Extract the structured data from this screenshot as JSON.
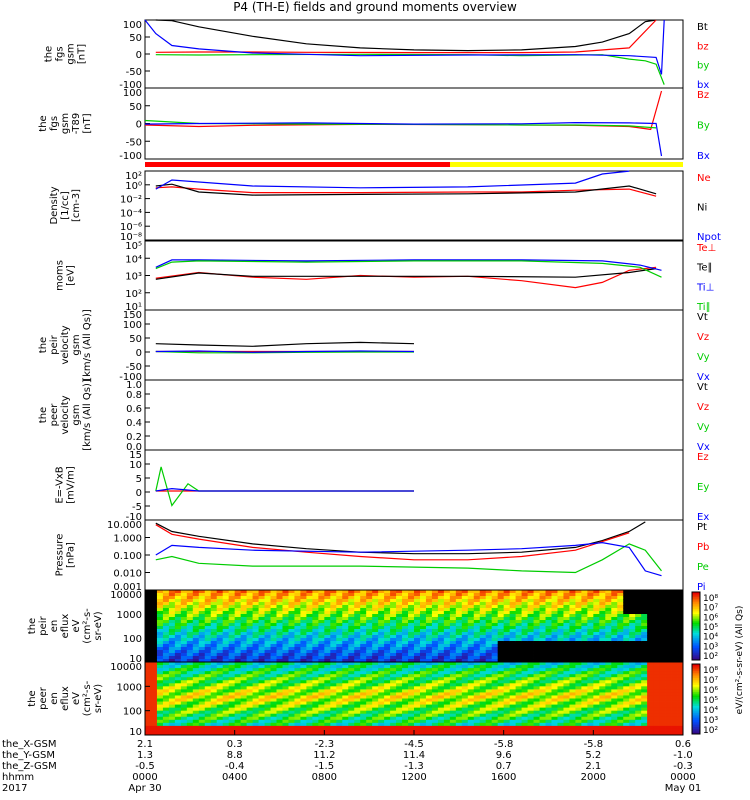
{
  "title": "P4 (TH-E) fields and ground moments overview",
  "colors": {
    "black": "#000000",
    "red": "#ff0000",
    "green": "#00cc00",
    "blue": "#0000ff",
    "bar_red": "#ff0000",
    "bar_yellow": "#ffff00"
  },
  "chart_data": [
    {
      "type": "line",
      "panel_id": "fgs_gsm",
      "ylabel_lines": [
        "the",
        "fgs",
        "gsm",
        "[nT]"
      ],
      "yticks": [
        "100",
        "50",
        "0",
        "-50",
        "-100"
      ],
      "ylim": [
        -100,
        100
      ],
      "legend": [
        {
          "label": "Bt",
          "color": "#000000"
        },
        {
          "label": "bz",
          "color": "#ff0000"
        },
        {
          "label": "by",
          "color": "#00cc00"
        },
        {
          "label": "bx",
          "color": "#0000ff"
        }
      ],
      "series": [
        {
          "name": "Bt",
          "color": "#000000",
          "x": [
            0.02,
            0.05,
            0.1,
            0.2,
            0.3,
            0.4,
            0.5,
            0.6,
            0.7,
            0.8,
            0.85,
            0.9,
            0.93,
            0.95
          ],
          "y": [
            105,
            98,
            80,
            52,
            30,
            18,
            12,
            10,
            12,
            22,
            35,
            60,
            95,
            105
          ]
        },
        {
          "name": "bz",
          "color": "#ff0000",
          "x": [
            0.02,
            0.1,
            0.2,
            0.3,
            0.5,
            0.7,
            0.8,
            0.9,
            0.95
          ],
          "y": [
            5,
            6,
            6,
            5,
            4,
            4,
            6,
            18,
            100
          ]
        },
        {
          "name": "by",
          "color": "#00cc00",
          "x": [
            0.02,
            0.1,
            0.2,
            0.4,
            0.6,
            0.7,
            0.8,
            0.85,
            0.88,
            0.9,
            0.93,
            0.95,
            0.965
          ],
          "y": [
            -2,
            -3,
            -2,
            -1,
            -2,
            -5,
            -3,
            -2,
            -10,
            -15,
            -20,
            -30,
            -90
          ]
        },
        {
          "name": "bx",
          "color": "#0000ff",
          "x": [
            0.0,
            0.02,
            0.05,
            0.1,
            0.2,
            0.4,
            0.6,
            0.8,
            0.9,
            0.95,
            0.96,
            0.965
          ],
          "y": [
            100,
            60,
            25,
            15,
            3,
            -5,
            -3,
            -2,
            -5,
            -10,
            -60,
            100
          ]
        }
      ]
    },
    {
      "type": "line",
      "panel_id": "fgs_gsm_t89",
      "ylabel_lines": [
        "the",
        "fgs",
        "gsm",
        "-T89",
        "[nT]"
      ],
      "yticks": [
        "100",
        "50",
        "0",
        "-50",
        "-100"
      ],
      "ylim": [
        -120,
        120
      ],
      "legend": [
        {
          "label": "Bz",
          "color": "#ff0000"
        },
        {
          "label": "By",
          "color": "#00cc00"
        },
        {
          "label": "Bx",
          "color": "#0000ff"
        }
      ],
      "series": [
        {
          "name": "Bz",
          "color": "#ff0000",
          "x": [
            0.0,
            0.1,
            0.2,
            0.4,
            0.6,
            0.8,
            0.9,
            0.94,
            0.96
          ],
          "y": [
            -5,
            -10,
            -6,
            -3,
            -4,
            -6,
            -10,
            -20,
            110
          ]
        },
        {
          "name": "By",
          "color": "#00cc00",
          "x": [
            0.0,
            0.1,
            0.3,
            0.5,
            0.7,
            0.8,
            0.9,
            0.95
          ],
          "y": [
            10,
            0,
            -2,
            -3,
            -5,
            -5,
            -8,
            -15
          ]
        },
        {
          "name": "Bx",
          "color": "#0000ff",
          "x": [
            0.0,
            0.1,
            0.3,
            0.5,
            0.7,
            0.8,
            0.9,
            0.95,
            0.96
          ],
          "y": [
            -2,
            0,
            2,
            -2,
            -1,
            3,
            2,
            0,
            -110
          ]
        }
      ]
    },
    {
      "type": "line",
      "panel_id": "density",
      "ylabel_lines": [
        "Density",
        "[1/cc]",
        "[cm-3]"
      ],
      "yticks": [
        "10²",
        "10⁰",
        "10⁻²",
        "10⁻⁴",
        "10⁻⁶",
        "10⁻⁸"
      ],
      "ylim_log10": [
        -9,
        2.5
      ],
      "legend": [
        {
          "label": "Ne",
          "color": "#ff0000"
        },
        {
          "label": "Ni",
          "color": "#000000"
        },
        {
          "label": "Npot",
          "color": "#0000ff"
        }
      ],
      "series": [
        {
          "name": "Ne",
          "color": "#ff0000",
          "x": [
            0.02,
            0.05,
            0.1,
            0.2,
            0.4,
            0.6,
            0.7,
            0.8,
            0.9,
            0.95
          ],
          "y": [
            0.5,
            0.7,
            0.3,
            0.08,
            0.08,
            0.1,
            0.1,
            0.2,
            0.3,
            0.02
          ]
        },
        {
          "name": "Ni",
          "color": "#000000",
          "x": [
            0.02,
            0.05,
            0.1,
            0.2,
            0.4,
            0.6,
            0.8,
            0.9,
            0.95
          ],
          "y": [
            1,
            2,
            0.1,
            0.03,
            0.04,
            0.05,
            0.1,
            1,
            0.05
          ]
        },
        {
          "name": "Npot",
          "color": "#0000ff",
          "x": [
            0.02,
            0.05,
            0.2,
            0.4,
            0.6,
            0.8,
            0.85,
            0.9
          ],
          "y": [
            0.3,
            10,
            1,
            0.5,
            0.7,
            3,
            100,
            300
          ]
        }
      ]
    },
    {
      "type": "line",
      "panel_id": "moments_temp",
      "ylabel_lines": [
        "moms",
        "[eV]"
      ],
      "yticks": [
        "10⁵",
        "10⁴",
        "10³",
        "10²",
        "10¹"
      ],
      "ylim_log10": [
        1,
        5
      ],
      "legend": [
        {
          "label": "Te⊥",
          "color": "#ff0000"
        },
        {
          "label": "Te∥",
          "color": "#000000"
        },
        {
          "label": "Ti⊥",
          "color": "#0000ff"
        },
        {
          "label": "Ti∥",
          "color": "#00cc00"
        }
      ],
      "series": [
        {
          "name": "Te⊥",
          "color": "#ff0000",
          "x": [
            0.02,
            0.1,
            0.2,
            0.3,
            0.4,
            0.5,
            0.6,
            0.7,
            0.8,
            0.85,
            0.9,
            0.95
          ],
          "y": [
            700,
            1500,
            800,
            600,
            1000,
            800,
            900,
            500,
            200,
            400,
            2000,
            3000
          ]
        },
        {
          "name": "Te∥",
          "color": "#000000",
          "x": [
            0.02,
            0.1,
            0.2,
            0.4,
            0.6,
            0.8,
            0.9,
            0.95
          ],
          "y": [
            600,
            1400,
            900,
            900,
            900,
            800,
            1500,
            2500
          ]
        },
        {
          "name": "Ti⊥",
          "color": "#0000ff",
          "x": [
            0.02,
            0.05,
            0.1,
            0.3,
            0.5,
            0.7,
            0.85,
            0.92,
            0.96
          ],
          "y": [
            3000,
            8000,
            8000,
            7000,
            8000,
            8000,
            7000,
            4000,
            2000
          ]
        },
        {
          "name": "Ti∥",
          "color": "#00cc00",
          "x": [
            0.02,
            0.05,
            0.1,
            0.3,
            0.5,
            0.7,
            0.85,
            0.92,
            0.96
          ],
          "y": [
            2500,
            6000,
            7000,
            6000,
            7000,
            7000,
            5000,
            3000,
            800
          ]
        }
      ]
    },
    {
      "type": "line",
      "panel_id": "peir_velocity",
      "ylabel_lines": [
        "the",
        "peir",
        "velocity",
        "gsm",
        "[km/s (All Qs)]"
      ],
      "yticks": [
        "150",
        "100",
        "50",
        "0",
        "-50",
        "-100"
      ],
      "ylim": [
        -110,
        160
      ],
      "legend": [
        {
          "label": "Vt",
          "color": "#000000"
        },
        {
          "label": "Vz",
          "color": "#ff0000"
        },
        {
          "label": "Vy",
          "color": "#00cc00"
        },
        {
          "label": "Vx",
          "color": "#0000ff"
        }
      ],
      "series": [
        {
          "name": "Vt",
          "color": "#000000",
          "x": [
            0.02,
            0.1,
            0.2,
            0.3,
            0.4,
            0.5
          ],
          "y": [
            30,
            25,
            20,
            30,
            35,
            30
          ]
        },
        {
          "name": "Vz",
          "color": "#ff0000",
          "x": [
            0.02,
            0.1,
            0.2,
            0.3,
            0.4,
            0.5
          ],
          "y": [
            0,
            0,
            0,
            0,
            0,
            0
          ]
        },
        {
          "name": "Vy",
          "color": "#00cc00",
          "x": [
            0.02,
            0.1,
            0.2,
            0.3,
            0.4,
            0.5
          ],
          "y": [
            0,
            -5,
            -5,
            -3,
            -2,
            -2
          ]
        },
        {
          "name": "Vx",
          "color": "#0000ff",
          "x": [
            0.02,
            0.1,
            0.2,
            0.3,
            0.4,
            0.5
          ],
          "y": [
            0,
            2,
            -3,
            0,
            2,
            0
          ]
        }
      ]
    },
    {
      "type": "line",
      "panel_id": "peer_velocity",
      "ylabel_lines": [
        "the",
        "peer",
        "velocity",
        "gsm",
        "[km/s (All Qs)]"
      ],
      "yticks": [
        "1.0",
        "0.8",
        "0.6",
        "0.4",
        "0.2",
        "0.0"
      ],
      "ylim": [
        0,
        1
      ],
      "legend": [
        {
          "label": "Vt",
          "color": "#000000"
        },
        {
          "label": "Vz",
          "color": "#ff0000"
        },
        {
          "label": "Vy",
          "color": "#00cc00"
        },
        {
          "label": "Vx",
          "color": "#0000ff"
        }
      ],
      "series": []
    },
    {
      "type": "line",
      "panel_id": "e_field",
      "ylabel_lines": [
        "E=-VxB",
        "[mV/m]"
      ],
      "yticks": [
        "15",
        "10",
        "5",
        "0",
        "-5",
        "-10"
      ],
      "ylim": [
        -12,
        17
      ],
      "legend": [
        {
          "label": "Ez",
          "color": "#ff0000"
        },
        {
          "label": "Ey",
          "color": "#00cc00"
        },
        {
          "label": "Ex",
          "color": "#0000ff"
        }
      ],
      "series": [
        {
          "name": "Ez",
          "color": "#ff0000",
          "x": [
            0.02,
            0.1,
            0.2,
            0.3,
            0.4,
            0.5
          ],
          "y": [
            0,
            0,
            0,
            0,
            0,
            0
          ]
        },
        {
          "name": "Ey",
          "color": "#00cc00",
          "x": [
            0.02,
            0.03,
            0.05,
            0.08,
            0.1,
            0.2,
            0.5
          ],
          "y": [
            0,
            10,
            -6,
            3,
            0,
            0,
            0
          ]
        },
        {
          "name": "Ex",
          "color": "#0000ff",
          "x": [
            0.02,
            0.05,
            0.1,
            0.5
          ],
          "y": [
            0,
            1,
            0,
            0
          ]
        }
      ]
    },
    {
      "type": "line",
      "panel_id": "pressure",
      "ylabel_lines": [
        "Pressure",
        "[nPa]"
      ],
      "yticks": [
        "10.000",
        "1.000",
        "0.100",
        "0.010",
        "0.001"
      ],
      "ylim_log10": [
        -3.2,
        1.2
      ],
      "legend": [
        {
          "label": "Pt",
          "color": "#000000"
        },
        {
          "label": "Pb",
          "color": "#ff0000"
        },
        {
          "label": "Pe",
          "color": "#00cc00"
        },
        {
          "label": "Pi",
          "color": "#0000ff"
        }
      ],
      "series": [
        {
          "name": "Pt",
          "color": "#000000",
          "x": [
            0.02,
            0.05,
            0.1,
            0.2,
            0.3,
            0.4,
            0.5,
            0.6,
            0.7,
            0.8,
            0.85,
            0.9,
            0.93
          ],
          "y": [
            10,
            3,
            1.5,
            0.5,
            0.25,
            0.15,
            0.12,
            0.12,
            0.15,
            0.3,
            0.8,
            3,
            12
          ]
        },
        {
          "name": "Pb",
          "color": "#ff0000",
          "x": [
            0.02,
            0.05,
            0.1,
            0.2,
            0.3,
            0.4,
            0.5,
            0.6,
            0.7,
            0.8,
            0.85,
            0.9
          ],
          "y": [
            8,
            2,
            1,
            0.3,
            0.15,
            0.08,
            0.05,
            0.05,
            0.08,
            0.2,
            0.7,
            2.5
          ]
        },
        {
          "name": "Pe",
          "color": "#00cc00",
          "x": [
            0.02,
            0.05,
            0.1,
            0.2,
            0.4,
            0.6,
            0.7,
            0.8,
            0.85,
            0.9,
            0.93,
            0.96
          ],
          "y": [
            0.05,
            0.08,
            0.03,
            0.02,
            0.02,
            0.015,
            0.01,
            0.008,
            0.05,
            0.5,
            0.2,
            0.01
          ]
        },
        {
          "name": "Pi",
          "color": "#0000ff",
          "x": [
            0.02,
            0.05,
            0.1,
            0.2,
            0.4,
            0.6,
            0.7,
            0.8,
            0.85,
            0.9,
            0.93,
            0.96
          ],
          "y": [
            0.1,
            0.4,
            0.3,
            0.2,
            0.15,
            0.2,
            0.25,
            0.4,
            0.6,
            0.3,
            0.01,
            0.005
          ]
        }
      ]
    },
    {
      "type": "heatmap",
      "panel_id": "peir_en_eflux",
      "ylabel_lines": [
        "the",
        "peir",
        "en",
        "eflux",
        "eV",
        "(cm²-s-",
        "sr-eV)"
      ],
      "yticks": [
        "10000",
        "1000",
        "100",
        "10"
      ]
    },
    {
      "type": "heatmap",
      "panel_id": "peer_en_eflux",
      "ylabel_lines": [
        "the",
        "peer",
        "en",
        "eflux",
        "eV",
        "(cm²-s-",
        "sr-eV)"
      ],
      "yticks": [
        "10000",
        "1000",
        "100",
        "10"
      ]
    }
  ],
  "colorbar": {
    "title": "eV/(cm²-s-sr-eV) (All Qs)",
    "upper_ticks": [
      "10⁸",
      "10⁷",
      "10⁶",
      "10⁵",
      "10⁴",
      "10³",
      "10²"
    ],
    "lower_ticks": [
      "10⁸",
      "10⁷",
      "10⁶",
      "10⁵",
      "10⁴",
      "10³",
      "10²"
    ]
  },
  "xaxis": {
    "row_labels": [
      "the_X-GSM",
      "the_Y-GSM",
      "the_Z-GSM",
      "hhmm",
      "2017"
    ],
    "columns": [
      {
        "values": [
          "2.1",
          "1.3",
          "-0.5",
          "0000",
          "Apr 30"
        ]
      },
      {
        "values": [
          "0.3",
          "8.8",
          "-0.4",
          "0400",
          ""
        ]
      },
      {
        "values": [
          "-2.3",
          "11.2",
          "-1.5",
          "0800",
          ""
        ]
      },
      {
        "values": [
          "-4.5",
          "11.4",
          "-1.3",
          "1200",
          ""
        ]
      },
      {
        "values": [
          "-5.8",
          "9.6",
          "0.7",
          "1600",
          ""
        ]
      },
      {
        "values": [
          "-5.8",
          "5.2",
          "2.1",
          "2000",
          ""
        ]
      },
      {
        "values": [
          "0.6",
          "-1.0",
          "-0.3",
          "0000",
          "May 01"
        ]
      }
    ]
  }
}
